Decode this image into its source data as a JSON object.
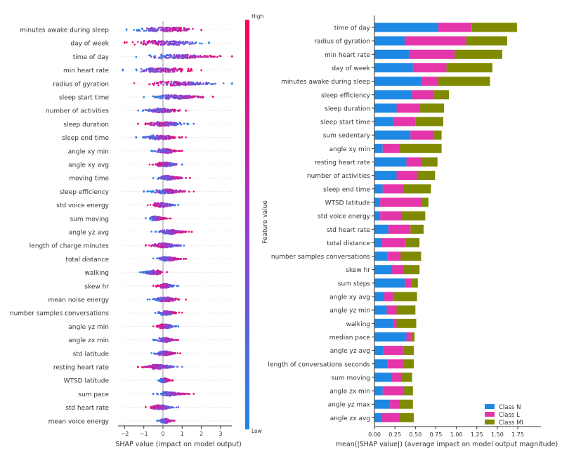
{
  "chart_data": [
    {
      "type": "scatter",
      "subtype": "shap-beeswarm",
      "xlabel": "SHAP value (impact on model output)",
      "xlim": [
        -2.4,
        4.0
      ],
      "xticks": [
        -2,
        -1,
        0,
        1,
        2,
        3
      ],
      "colorbar": {
        "label": "Feature value",
        "high_label": "High",
        "low_label": "Low",
        "low_color": "#1e88e5",
        "high_color": "#ff0052"
      },
      "features": [
        {
          "name": "minutes awake during sleep",
          "min": -1.9,
          "max": 2.0,
          "hw": [
            0.9,
            1.9,
            2.5,
            2.8,
            3.0,
            3.0,
            2.8,
            2.4,
            1.6
          ]
        },
        {
          "name": "day of week",
          "min": -2.0,
          "max": 2.4,
          "hw": [
            1.2,
            2.3,
            3.0,
            3.0,
            2.8,
            2.8,
            2.2,
            1.6,
            1.0
          ]
        },
        {
          "name": "time of day",
          "min": -1.4,
          "max": 3.6,
          "hw": [
            1.0,
            2.2,
            3.0,
            3.0,
            2.5,
            1.9,
            1.3,
            0.8,
            0.5
          ]
        },
        {
          "name": "min heart rate",
          "min": -2.1,
          "max": 2.0,
          "hw": [
            0.8,
            1.8,
            2.6,
            3.0,
            3.0,
            2.8,
            2.4,
            1.8,
            1.0
          ]
        },
        {
          "name": "radius of gyration",
          "min": -1.5,
          "max": 3.6,
          "hw": [
            1.0,
            2.2,
            3.0,
            3.0,
            2.6,
            2.0,
            1.4,
            0.9,
            0.5
          ]
        },
        {
          "name": "sleep start time",
          "min": -1.0,
          "max": 2.6,
          "hw": [
            0.7,
            1.6,
            2.6,
            3.0,
            2.6,
            2.0,
            1.4,
            0.8,
            0.4
          ]
        },
        {
          "name": "number of activities",
          "min": -1.3,
          "max": 1.2,
          "hw": [
            0.6,
            1.2,
            2.0,
            3.0,
            3.0,
            2.4,
            1.5,
            0.9,
            0.4
          ]
        },
        {
          "name": "sleep duration",
          "min": -1.3,
          "max": 1.6,
          "hw": [
            0.5,
            1.0,
            2.0,
            3.0,
            3.0,
            2.4,
            1.6,
            0.8,
            0.4
          ]
        },
        {
          "name": "sleep end time",
          "min": -1.4,
          "max": 1.2,
          "hw": [
            0.6,
            1.2,
            2.0,
            3.0,
            3.0,
            2.4,
            1.4,
            0.8,
            0.4
          ]
        },
        {
          "name": "angle xy min",
          "min": -0.6,
          "max": 1.0,
          "hw": [
            0.6,
            1.4,
            2.6,
            3.0,
            3.0,
            2.4,
            1.4,
            0.7,
            0.3
          ]
        },
        {
          "name": "angle xy avg",
          "min": -0.7,
          "max": 1.0,
          "hw": [
            0.6,
            1.4,
            2.6,
            3.0,
            3.0,
            2.4,
            1.4,
            0.7,
            0.3
          ]
        },
        {
          "name": "moving time",
          "min": -0.5,
          "max": 1.4,
          "hw": [
            0.6,
            1.6,
            3.0,
            3.0,
            2.2,
            1.4,
            0.9,
            0.5,
            0.3
          ]
        },
        {
          "name": "sleep efficiency",
          "min": -1.0,
          "max": 1.6,
          "hw": [
            0.5,
            1.0,
            2.0,
            3.0,
            3.0,
            2.4,
            1.6,
            0.9,
            0.4
          ]
        },
        {
          "name": "std voice energy",
          "min": -0.8,
          "max": 0.8,
          "hw": [
            0.6,
            1.4,
            2.6,
            3.0,
            3.0,
            2.4,
            1.4,
            0.7,
            0.3
          ]
        },
        {
          "name": "sum moving",
          "min": -0.9,
          "max": 0.4,
          "hw": [
            0.6,
            1.6,
            3.0,
            3.0,
            2.4,
            1.4,
            0.8,
            0.4,
            0.2
          ]
        },
        {
          "name": "angle yz avg",
          "min": -0.6,
          "max": 1.5,
          "hw": [
            0.5,
            1.2,
            2.4,
            3.0,
            3.0,
            2.0,
            1.2,
            0.6,
            0.3
          ]
        },
        {
          "name": "length of charge minutes",
          "min": -0.9,
          "max": 1.2,
          "hw": [
            0.5,
            1.2,
            2.2,
            3.0,
            3.0,
            2.2,
            1.3,
            0.7,
            0.3
          ]
        },
        {
          "name": "total distance",
          "min": -0.5,
          "max": 1.2,
          "hw": [
            0.6,
            1.4,
            2.8,
            3.0,
            2.6,
            1.8,
            1.0,
            0.5,
            0.3
          ]
        },
        {
          "name": "walking",
          "min": -1.2,
          "max": 0.2,
          "hw": [
            0.5,
            1.0,
            1.6,
            2.2,
            3.0,
            3.0,
            2.0,
            1.0,
            0.5
          ]
        },
        {
          "name": "skew hr",
          "min": -0.5,
          "max": 0.8,
          "hw": [
            0.6,
            1.4,
            2.6,
            3.0,
            3.0,
            2.2,
            1.2,
            0.6,
            0.3
          ]
        },
        {
          "name": "mean noise energy",
          "min": -0.8,
          "max": 1.2,
          "hw": [
            0.5,
            1.2,
            2.2,
            3.0,
            3.0,
            2.4,
            1.4,
            0.7,
            0.3
          ]
        },
        {
          "name": "number samples conversations",
          "min": -0.4,
          "max": 1.0,
          "hw": [
            0.6,
            1.4,
            2.8,
            3.0,
            2.6,
            1.6,
            0.9,
            0.5,
            0.3
          ]
        },
        {
          "name": "angle yz min",
          "min": -0.5,
          "max": 0.8,
          "hw": [
            0.6,
            1.4,
            2.6,
            3.0,
            3.0,
            2.2,
            1.2,
            0.6,
            0.3
          ]
        },
        {
          "name": "angle zx min",
          "min": -0.5,
          "max": 0.8,
          "hw": [
            0.6,
            1.4,
            2.6,
            3.0,
            3.0,
            2.2,
            1.2,
            0.6,
            0.3
          ]
        },
        {
          "name": "std latitude",
          "min": -0.6,
          "max": 0.9,
          "hw": [
            0.5,
            1.2,
            2.4,
            3.0,
            3.0,
            2.2,
            1.2,
            0.6,
            0.3
          ]
        },
        {
          "name": "resting heart rate",
          "min": -1.3,
          "max": 1.0,
          "hw": [
            0.5,
            1.0,
            1.8,
            3.0,
            3.0,
            2.2,
            1.2,
            0.6,
            0.3
          ]
        },
        {
          "name": "WTSD latitude",
          "min": -0.3,
          "max": 0.5,
          "hw": [
            0.5,
            1.2,
            2.4,
            3.0,
            3.0,
            2.4,
            1.4,
            0.7,
            0.3
          ]
        },
        {
          "name": "sum pace",
          "min": -0.5,
          "max": 1.6,
          "hw": [
            0.6,
            1.6,
            3.0,
            3.0,
            2.0,
            1.2,
            0.7,
            0.4,
            0.2
          ]
        },
        {
          "name": "std heart rate",
          "min": -0.9,
          "max": 0.8,
          "hw": [
            0.5,
            1.2,
            2.4,
            3.0,
            3.0,
            2.2,
            1.2,
            0.6,
            0.3
          ]
        },
        {
          "name": "mean voice energy",
          "min": -0.3,
          "max": 0.6,
          "hw": [
            0.6,
            1.4,
            2.6,
            3.0,
            3.0,
            2.2,
            1.2,
            0.6,
            0.3
          ]
        }
      ]
    },
    {
      "type": "bar",
      "orientation": "horizontal",
      "stacked": true,
      "xlabel": "mean(|SHAP value|) (average impact on model output magnitude)",
      "xlim": [
        0,
        1.75
      ],
      "xticks": [
        "0.00",
        "0.25",
        "0.50",
        "0.75",
        "1.00",
        "1.25",
        "1.50",
        "1.75"
      ],
      "legend_position": "bottom-right",
      "categories": [
        "time of day",
        "radius of gyration",
        "min heart rate",
        "day of week",
        "minutes awake during sleep",
        "sleep efficiency",
        "sleep duration",
        "sleep start time",
        "sum sedentary",
        "angle xy min",
        "resting heart rate",
        "number of activities",
        "sleep end time",
        "WTSD latitude",
        "std voice energy",
        "std heart rate",
        "total distance",
        "number samples conversations",
        "skew hr",
        "sum steps",
        "angle xy avg",
        "angle yz min",
        "walking",
        "median pace",
        "angle yz avg",
        "length of conversations seconds",
        "sum moving",
        "angle zx min",
        "angle yz max",
        "angle zx avg"
      ],
      "series": [
        {
          "name": "Class N",
          "color": "#1e88e5",
          "values": [
            0.78,
            0.37,
            0.42,
            0.47,
            0.58,
            0.46,
            0.27,
            0.23,
            0.44,
            0.1,
            0.39,
            0.27,
            0.1,
            0.07,
            0.07,
            0.17,
            0.09,
            0.16,
            0.21,
            0.37,
            0.12,
            0.15,
            0.23,
            0.39,
            0.11,
            0.16,
            0.21,
            0.1,
            0.19,
            0.09
          ]
        },
        {
          "name": "Class L",
          "color": "#e535ab",
          "values": [
            0.41,
            0.75,
            0.56,
            0.41,
            0.2,
            0.27,
            0.28,
            0.27,
            0.29,
            0.2,
            0.18,
            0.25,
            0.26,
            0.51,
            0.26,
            0.27,
            0.29,
            0.16,
            0.15,
            0.08,
            0.11,
            0.12,
            0.04,
            0.06,
            0.24,
            0.19,
            0.12,
            0.26,
            0.12,
            0.21
          ]
        },
        {
          "name": "Class MI",
          "color": "#7f8a00",
          "values": [
            0.55,
            0.5,
            0.58,
            0.56,
            0.63,
            0.18,
            0.3,
            0.34,
            0.09,
            0.52,
            0.2,
            0.22,
            0.33,
            0.08,
            0.29,
            0.16,
            0.17,
            0.25,
            0.19,
            0.08,
            0.29,
            0.23,
            0.24,
            0.04,
            0.13,
            0.13,
            0.13,
            0.11,
            0.16,
            0.18
          ]
        }
      ]
    }
  ]
}
